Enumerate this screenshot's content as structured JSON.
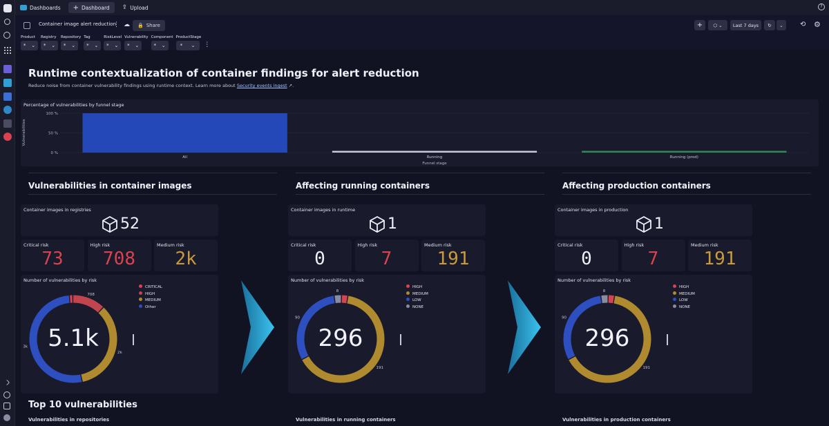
{
  "topbar": {
    "tabs": [
      {
        "label": "Dashboards"
      },
      {
        "label": "Dashboard"
      },
      {
        "label": "Upload"
      }
    ]
  },
  "toolbar": {
    "title": "Container image alert reduction",
    "share_label": "Share",
    "timeframe": "Last 7 days"
  },
  "filters": [
    {
      "name": "Product",
      "value": "*"
    },
    {
      "name": "Registry",
      "value": "*"
    },
    {
      "name": "Repository",
      "value": "*"
    },
    {
      "name": "Tag",
      "value": "*"
    },
    {
      "name": "RiskLevel",
      "value": "*"
    },
    {
      "name": "Vulnerability",
      "value": "*"
    },
    {
      "name": "Component",
      "value": "*"
    },
    {
      "name": "ProductStage",
      "value": "*"
    }
  ],
  "header": {
    "title": "Runtime contextualization of container findings for alert reduction",
    "subtitle_prefix": "Reduce noise from container vulnerability findings using runtime context. Learn more about",
    "link_text": "Security events ingest",
    "subtitle_suffix": "."
  },
  "funnel": {
    "title": "Percentage of vulnerabilities by funnel stage",
    "chart_data": {
      "type": "bar",
      "categories": [
        "All",
        "Running",
        "Running (prod)"
      ],
      "values": [
        100,
        2,
        1
      ],
      "ylabel": "Vulnerabilities",
      "xlabel": "Funnel stage",
      "yticks": [
        "100 %",
        "50 %",
        "0 %"
      ],
      "ylim": [
        0,
        100
      ],
      "colors": [
        "#2448b8",
        "#c9cad6",
        "#2f8a56"
      ]
    }
  },
  "columns": [
    {
      "heading": "Vulnerabilities in container images",
      "images_title": "Container images in registries",
      "images_count": "52",
      "risks": [
        {
          "label": "Critical risk",
          "value": "73",
          "color": "#d8434f"
        },
        {
          "label": "High risk",
          "value": "708",
          "color": "#d8434f"
        },
        {
          "label": "Medium risk",
          "value": "2k",
          "color": "#c99a3a"
        }
      ],
      "donut_title": "Number of vulnerabilities by risk",
      "donut_total": "5.1k",
      "legend": [
        {
          "label": "CRITICAL",
          "color": "#d8434f"
        },
        {
          "label": "HIGH",
          "color": "#c0454f"
        },
        {
          "label": "MEDIUM",
          "color": "#b08a2e"
        },
        {
          "label": "Other",
          "color": "#2d4fc0"
        }
      ],
      "slice_labels": [
        "708",
        "2k",
        "3k"
      ],
      "chart_data": {
        "type": "pie",
        "categories": [
          "CRITICAL",
          "HIGH",
          "MEDIUM",
          "Other"
        ],
        "values": [
          73,
          708,
          2000,
          3000
        ],
        "colors": [
          "#d8434f",
          "#c0454f",
          "#b08a2e",
          "#2d4fc0"
        ]
      }
    },
    {
      "heading": "Affecting running containers",
      "images_title": "Container images in runtime",
      "images_count": "1",
      "risks": [
        {
          "label": "Critical risk",
          "value": "0",
          "color": "#eef0fa"
        },
        {
          "label": "High risk",
          "value": "7",
          "color": "#d8434f"
        },
        {
          "label": "Medium risk",
          "value": "191",
          "color": "#c99a3a"
        }
      ],
      "donut_title": "Number of vulnerabilities by risk",
      "donut_total": "296",
      "legend": [
        {
          "label": "HIGH",
          "color": "#d8434f"
        },
        {
          "label": "MEDIUM",
          "color": "#b08a2e"
        },
        {
          "label": "LOW",
          "color": "#2d4fc0"
        },
        {
          "label": "NONE",
          "color": "#8a8ca0"
        }
      ],
      "slice_labels": [
        "8",
        "191",
        "90"
      ],
      "chart_data": {
        "type": "pie",
        "categories": [
          "HIGH",
          "MEDIUM",
          "LOW",
          "NONE"
        ],
        "values": [
          7,
          191,
          90,
          8
        ],
        "colors": [
          "#d8434f",
          "#b08a2e",
          "#2d4fc0",
          "#8a8ca0"
        ]
      }
    },
    {
      "heading": "Affecting production containers",
      "images_title": "Container images in production",
      "images_count": "1",
      "risks": [
        {
          "label": "Critical risk",
          "value": "0",
          "color": "#eef0fa"
        },
        {
          "label": "High risk",
          "value": "7",
          "color": "#d8434f"
        },
        {
          "label": "Medium risk",
          "value": "191",
          "color": "#c99a3a"
        }
      ],
      "donut_title": "Number of vulnerabilities by risk",
      "donut_total": "296",
      "legend": [
        {
          "label": "HIGH",
          "color": "#d8434f"
        },
        {
          "label": "MEDIUM",
          "color": "#b08a2e"
        },
        {
          "label": "LOW",
          "color": "#2d4fc0"
        },
        {
          "label": "NONE",
          "color": "#8a8ca0"
        }
      ],
      "slice_labels": [
        "8",
        "191",
        "90"
      ],
      "chart_data": {
        "type": "pie",
        "categories": [
          "HIGH",
          "MEDIUM",
          "LOW",
          "NONE"
        ],
        "values": [
          7,
          191,
          90,
          8
        ],
        "colors": [
          "#d8434f",
          "#b08a2e",
          "#2d4fc0",
          "#8a8ca0"
        ]
      }
    }
  ],
  "top10": {
    "title": "Top 10 vulnerabilities",
    "subtitles": [
      "Vulnerabilities in repositories",
      "Vulnerabilities in running containers",
      "Vulnerabilities in production containers"
    ]
  }
}
